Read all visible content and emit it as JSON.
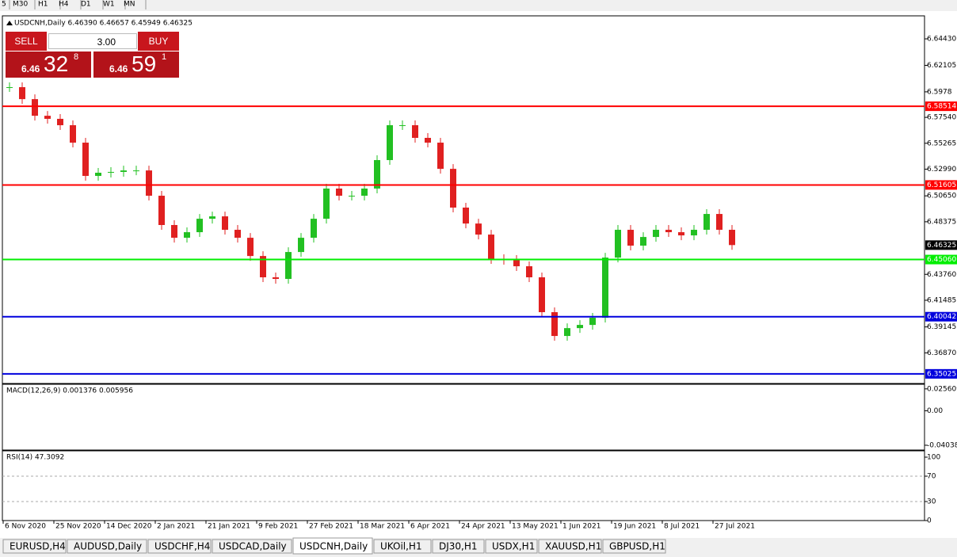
{
  "toolbar": {
    "timeframes": [
      "5",
      "M30",
      "H1",
      "H4",
      "D1",
      "W1",
      "MN"
    ]
  },
  "chart_header": "USDCNH,Daily  6.46390 6.46657 6.45949 6.46325",
  "trade_panel": {
    "sell": "SELL",
    "lot": "3.00",
    "buy": "BUY",
    "sell_big": "6.46",
    "sell_pips": "32",
    "sell_frac": "8",
    "buy_big": "6.46",
    "buy_pips": "59",
    "buy_frac": "1"
  },
  "chart_data": {
    "type": "candlestick",
    "categories": [
      "6 Nov 2020",
      null,
      null,
      null,
      "25 Nov 2020",
      null,
      null,
      null,
      "14 Dec 2020",
      null,
      null,
      null,
      "2 Jan 2021",
      null,
      null,
      null,
      "21 Jan 2021",
      null,
      null,
      null,
      "9 Feb 2021",
      null,
      null,
      null,
      "27 Feb 2021",
      null,
      null,
      null,
      "18 Mar 2021",
      null,
      null,
      null,
      "6 Apr 2021",
      null,
      null,
      null,
      "24 Apr 2021",
      null,
      null,
      null,
      "13 May 2021",
      null,
      null,
      null,
      "1 Jun 2021",
      null,
      null,
      null,
      "19 Jun 2021",
      null,
      null,
      null,
      "8 Jul 2021",
      null,
      null,
      null,
      "27 Jul 2021",
      null,
      null,
      null
    ],
    "values": [
      6.6019,
      6.5914,
      6.5768,
      6.5741,
      6.5685,
      6.5532,
      6.524,
      6.5268,
      6.5275,
      6.5288,
      6.5288,
      6.5066,
      6.4809,
      6.4697,
      6.4746,
      6.4864,
      6.4885,
      6.4767,
      6.4697,
      6.4537,
      6.435,
      6.4336,
      6.4572,
      6.4697,
      6.4864,
      6.5129,
      6.5066,
      6.5066,
      6.5129,
      6.5379,
      6.5685,
      6.5685,
      6.5574,
      6.5532,
      6.5302,
      6.4962,
      6.4822,
      6.4725,
      6.451,
      6.4503,
      6.4447,
      6.435,
      6.4044,
      6.3835,
      6.3904,
      6.3932,
      6.3995,
      6.4523,
      6.4767,
      6.4628,
      6.4704,
      6.4767,
      6.4746,
      6.4718,
      6.4767,
      6.4906,
      6.4767,
      6.4633,
      null,
      null
    ],
    "up_color": "#22c022",
    "down_color": "#e02020",
    "ylim": [
      6.3418,
      6.6645
    ],
    "yticks": [
      {
        "value": 6.6443,
        "label": "6.64430"
      },
      6.62105,
      6.5978,
      {
        "value": 6.5754,
        "label": "6.57540"
      },
      6.55265,
      {
        "value": 6.5299,
        "label": "6.52990"
      },
      {
        "value": 6.5065,
        "label": "6.50650"
      },
      6.48375,
      {
        "value": 6.4376,
        "label": "6.43760"
      },
      6.41485,
      6.39145,
      {
        "value": 6.3687,
        "label": "6.36870"
      }
    ],
    "levels": [
      {
        "value": 6.58514,
        "color": "#ff0000"
      },
      {
        "value": 6.51605,
        "color": "#ff0000"
      },
      {
        "value": {
          "value": 6.4506,
          "label": "6.45060"
        },
        "color": "#00ee00"
      },
      {
        "value": 6.40042,
        "color": "#0000dd"
      },
      {
        "value": 6.35025,
        "color": "#0000dd"
      }
    ],
    "current_price": 6.46325
  },
  "macd": {
    "label": "MACD(12,26,9) 0.001376 0.005956",
    "ticks": [
      0.025609,
      {
        "value": 0,
        "label": "0.00"
      },
      -0.040386
    ],
    "lim": [
      -0.046,
      0.031
    ]
  },
  "rsi": {
    "label": "RSI(14) 47.3092",
    "ticks": [
      100,
      70,
      30,
      0
    ],
    "lim": [
      0,
      110
    ]
  },
  "tabs": [
    "EURUSD,H4",
    "AUDUSD,Daily",
    "USDCHF,H4",
    "USDCAD,Daily",
    "USDCNH,Daily",
    "UKOil,H1",
    "DJ30,H1",
    "USDX,H1",
    "XAUUSD,H1",
    "GBPUSD,H1"
  ]
}
